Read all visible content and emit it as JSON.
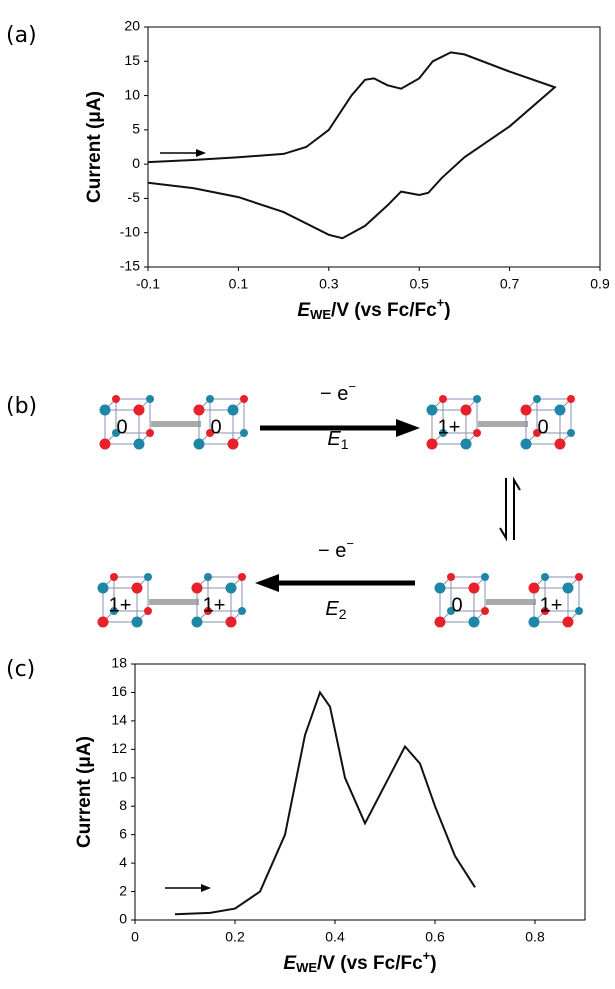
{
  "chart_data": [
    {
      "type": "line",
      "panel": "(a)",
      "y_label": "Current (μA)",
      "x_label": {
        "symbol": "E",
        "sub": "WE",
        "rest": "/V (vs Fc/Fc",
        "sup": "+",
        "end": ")"
      },
      "color": "#111111",
      "x": [
        -0.1,
        0,
        0.1,
        0.2,
        0.25,
        0.3,
        0.35,
        0.38,
        0.4,
        0.43,
        0.46,
        0.5,
        0.53,
        0.57,
        0.6,
        0.7,
        0.8,
        0.7,
        0.6,
        0.55,
        0.52,
        0.5,
        0.46,
        0.43,
        0.38,
        0.33,
        0.3,
        0.2,
        0.1,
        0,
        -0.1
      ],
      "values": [
        0.3,
        0.6,
        1,
        1.5,
        2.5,
        5,
        10,
        12.3,
        12.5,
        11.5,
        11,
        12.5,
        15,
        16.3,
        16,
        13.5,
        11.2,
        5.5,
        1,
        -2,
        -4.2,
        -4.5,
        -4,
        -6,
        -9,
        -10.8,
        -10.3,
        -7,
        -4.8,
        -3.5,
        -2.7
      ],
      "xlim": [
        -0.1,
        0.9
      ],
      "xticks": [
        -0.1,
        0.1,
        0.3,
        0.5,
        0.7,
        0.9
      ],
      "ylim": [
        -15,
        20
      ],
      "yticks": [
        -15,
        -10,
        -5,
        0,
        5,
        10,
        15,
        20
      ]
    },
    {
      "type": "line",
      "panel": "(c)",
      "y_label": "Current (μA)",
      "x_label": {
        "symbol": "E",
        "sub": "WE",
        "rest": "/V (vs Fc/Fc",
        "sup": "+",
        "end": ")"
      },
      "color": "#111111",
      "x": [
        0.08,
        0.15,
        0.2,
        0.25,
        0.3,
        0.34,
        0.37,
        0.39,
        0.42,
        0.46,
        0.5,
        0.54,
        0.57,
        0.6,
        0.64,
        0.68
      ],
      "values": [
        0.4,
        0.5,
        0.8,
        2,
        6,
        13,
        16,
        15,
        10,
        6.8,
        9.5,
        12.2,
        11,
        8,
        4.5,
        2.3
      ],
      "xlim": [
        0,
        0.9
      ],
      "xticks": [
        0,
        0.2,
        0.4,
        0.6,
        0.8
      ],
      "ylim": [
        0,
        18
      ],
      "yticks": [
        0,
        2,
        4,
        6,
        8,
        10,
        12,
        14,
        16,
        18
      ]
    }
  ],
  "scheme": {
    "panel": "(b)",
    "molecules": [
      [
        "0",
        "0"
      ],
      [
        "1+",
        "0"
      ],
      [
        "0",
        "1+"
      ],
      [
        "1+",
        "1+"
      ]
    ],
    "arrows": [
      {
        "text": "− e",
        "sup": "−",
        "symbol": "E",
        "index": "1"
      },
      {
        "text": "− e",
        "sup": "−",
        "symbol": "E",
        "index": "2"
      }
    ]
  }
}
